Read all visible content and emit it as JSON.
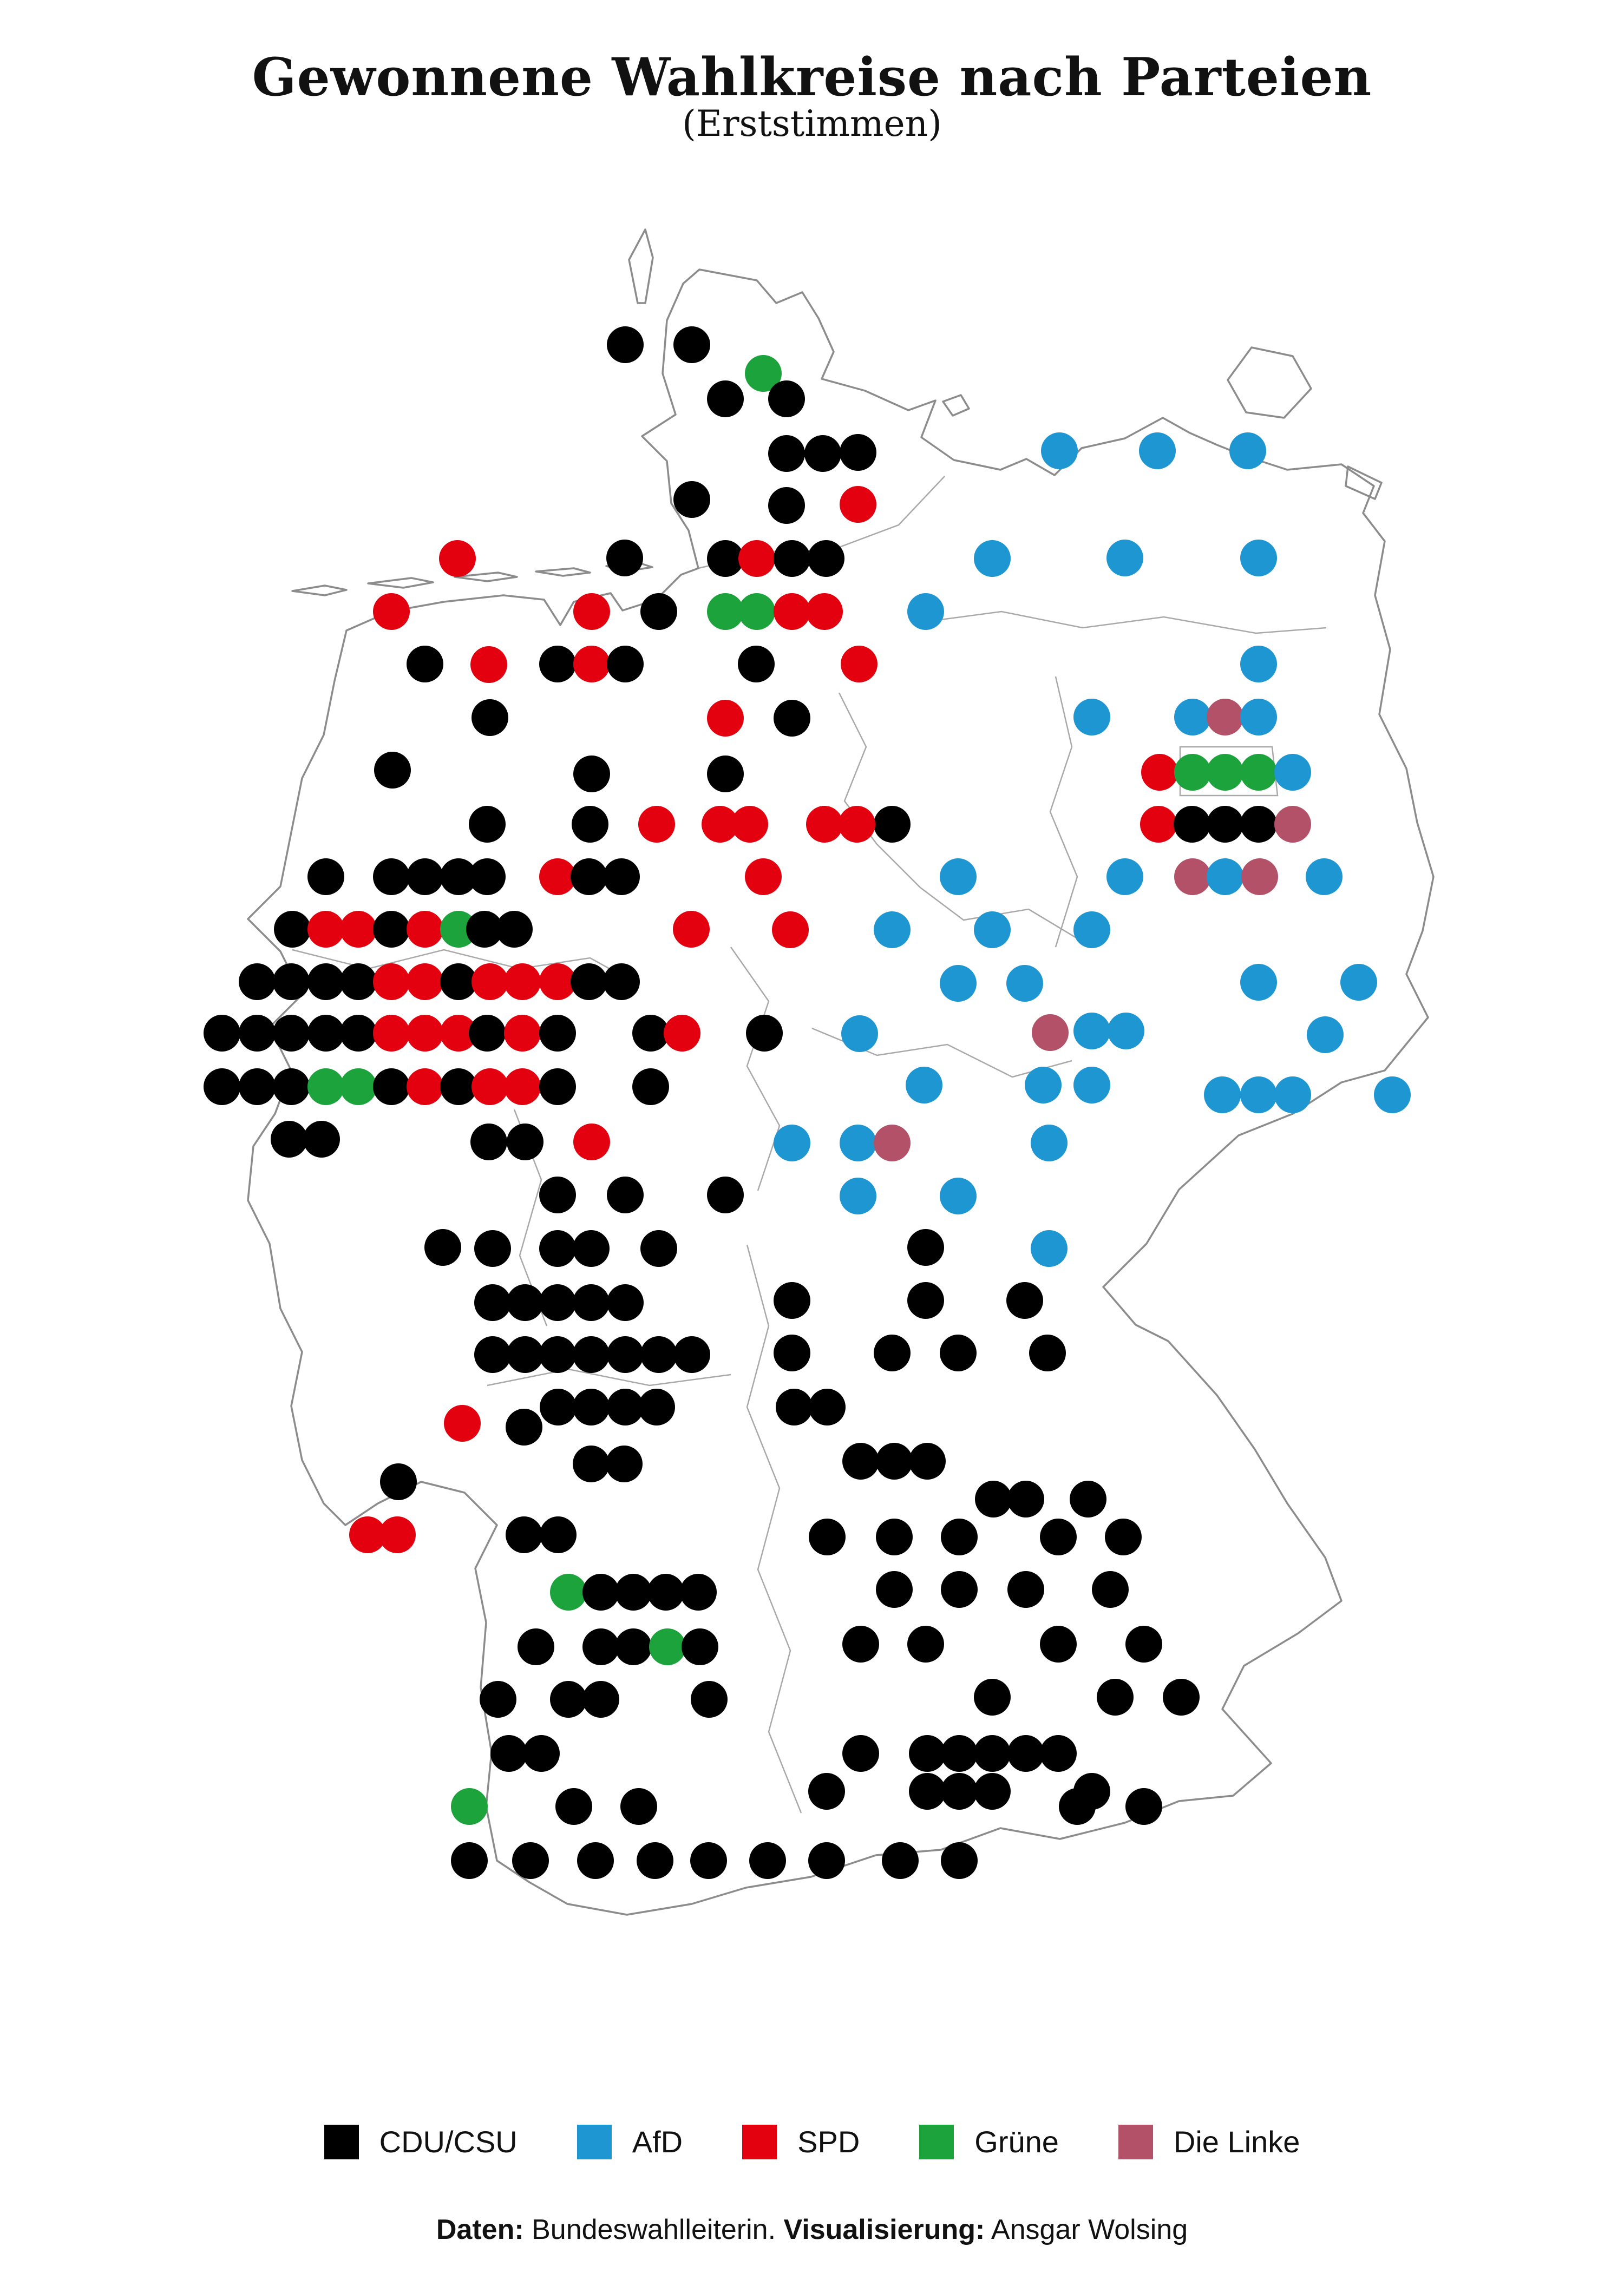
{
  "header": {
    "title": "Gewonnene Wahlkreise nach Parteien",
    "subtitle": "(Erststimmen)"
  },
  "footer": {
    "daten_label": "Daten:",
    "daten_value": " Bundeswahlleiterin. ",
    "vis_label": "Visualisierung:",
    "vis_value": " Ansgar Wolsing"
  },
  "legend": [
    {
      "party": "c",
      "label": "CDU/CSU"
    },
    {
      "party": "a",
      "label": "AfD"
    },
    {
      "party": "s",
      "label": "SPD"
    },
    {
      "party": "g",
      "label": "Grüne"
    },
    {
      "party": "l",
      "label": "Die Linke"
    }
  ],
  "chart_data": {
    "type": "scatter",
    "subtype": "dot-map-germany",
    "title": "Gewonnene Wahlkreise nach Parteien",
    "subtitle": "(Erststimmen)",
    "legend_position": "bottom",
    "marker_radius": 34,
    "parties": {
      "c": {
        "name": "CDU/CSU",
        "color": "#000000"
      },
      "a": {
        "name": "AfD",
        "color": "#1E96D2"
      },
      "s": {
        "name": "SPD",
        "color": "#E3000F"
      },
      "g": {
        "name": "Grüne",
        "color": "#1CA33C"
      },
      "l": {
        "name": "Die Linke",
        "color": "#B35169"
      }
    },
    "points": [
      [
        1155,
        637,
        "c"
      ],
      [
        1278,
        637,
        "c"
      ],
      [
        1410,
        690,
        "g"
      ],
      [
        1340,
        737,
        "c"
      ],
      [
        1453,
        737,
        "c"
      ],
      [
        1453,
        838,
        "c"
      ],
      [
        1520,
        838,
        "c"
      ],
      [
        1585,
        836,
        "c"
      ],
      [
        1278,
        923,
        "c"
      ],
      [
        1453,
        934,
        "c"
      ],
      [
        1585,
        932,
        "s"
      ],
      [
        1154,
        1031,
        "c"
      ],
      [
        1340,
        1032,
        "c"
      ],
      [
        1398,
        1032,
        "s"
      ],
      [
        1463,
        1032,
        "c"
      ],
      [
        1526,
        1032,
        "c"
      ],
      [
        1093,
        1130,
        "s"
      ],
      [
        1217,
        1130,
        "c"
      ],
      [
        1340,
        1130,
        "g"
      ],
      [
        1398,
        1130,
        "g"
      ],
      [
        1463,
        1130,
        "s"
      ],
      [
        1523,
        1130,
        "s"
      ],
      [
        1957,
        833,
        "a"
      ],
      [
        2138,
        833,
        "a"
      ],
      [
        2305,
        833,
        "a"
      ],
      [
        1833,
        1032,
        "a"
      ],
      [
        2078,
        1031,
        "a"
      ],
      [
        2325,
        1031,
        "a"
      ],
      [
        1710,
        1130,
        "a"
      ],
      [
        1587,
        1227,
        "s"
      ],
      [
        2325,
        1227,
        "a"
      ],
      [
        845,
        1032,
        "s"
      ],
      [
        723,
        1130,
        "s"
      ],
      [
        785,
        1227,
        "c"
      ],
      [
        903,
        1228,
        "s"
      ],
      [
        1030,
        1227,
        "c"
      ],
      [
        1093,
        1227,
        "s"
      ],
      [
        1155,
        1227,
        "c"
      ],
      [
        1397,
        1227,
        "c"
      ],
      [
        905,
        1326,
        "c"
      ],
      [
        1340,
        1327,
        "s"
      ],
      [
        1463,
        1327,
        "c"
      ],
      [
        725,
        1423,
        "c"
      ],
      [
        1093,
        1430,
        "c"
      ],
      [
        1340,
        1430,
        "c"
      ],
      [
        602,
        1620,
        "c"
      ],
      [
        1460,
        1718,
        "s"
      ],
      [
        1648,
        1523,
        "c"
      ],
      [
        2140,
        1523,
        "s"
      ],
      [
        2202,
        1523,
        "c"
      ],
      [
        2263,
        1523,
        "c"
      ],
      [
        2325,
        1523,
        "c"
      ],
      [
        2388,
        1523,
        "l"
      ],
      [
        2078,
        1620,
        "a"
      ],
      [
        2203,
        1620,
        "l"
      ],
      [
        2263,
        1620,
        "a"
      ],
      [
        2327,
        1620,
        "l"
      ],
      [
        2446,
        1620,
        "a"
      ],
      [
        1770,
        1620,
        "a"
      ],
      [
        1648,
        1718,
        "a"
      ],
      [
        1833,
        1718,
        "a"
      ],
      [
        2017,
        1718,
        "a"
      ],
      [
        1770,
        1817,
        "a"
      ],
      [
        1893,
        1817,
        "a"
      ],
      [
        2325,
        1815,
        "a"
      ],
      [
        2510,
        1815,
        "a"
      ],
      [
        1588,
        1910,
        "a"
      ],
      [
        1940,
        1908,
        "l"
      ],
      [
        2448,
        1912,
        "a"
      ],
      [
        2017,
        1905,
        "a"
      ],
      [
        2080,
        1905,
        "a"
      ],
      [
        1707,
        2005,
        "a"
      ],
      [
        1927,
        2005,
        "a"
      ],
      [
        2017,
        2005,
        "a"
      ],
      [
        2258,
        2023,
        "a"
      ],
      [
        2325,
        2023,
        "a"
      ],
      [
        2388,
        2023,
        "a"
      ],
      [
        2572,
        2023,
        "a"
      ],
      [
        1463,
        2112,
        "a"
      ],
      [
        1585,
        2112,
        "a"
      ],
      [
        1648,
        2112,
        "l"
      ],
      [
        1938,
        2112,
        "a"
      ],
      [
        1585,
        2210,
        "a"
      ],
      [
        1770,
        2210,
        "a"
      ],
      [
        1938,
        2307,
        "a"
      ],
      [
        2017,
        1325,
        "a"
      ],
      [
        2203,
        1325,
        "a"
      ],
      [
        2263,
        1325,
        "l"
      ],
      [
        2325,
        1325,
        "a"
      ],
      [
        2142,
        1427,
        "s"
      ],
      [
        2203,
        1427,
        "g"
      ],
      [
        2263,
        1427,
        "g"
      ],
      [
        2325,
        1427,
        "g"
      ],
      [
        2388,
        1427,
        "a"
      ],
      [
        900,
        1523,
        "c"
      ],
      [
        1090,
        1523,
        "c"
      ],
      [
        1213,
        1523,
        "s"
      ],
      [
        1330,
        1523,
        "s"
      ],
      [
        1385,
        1523,
        "s"
      ],
      [
        1523,
        1523,
        "s"
      ],
      [
        1583,
        1523,
        "s"
      ],
      [
        723,
        1620,
        "c"
      ],
      [
        785,
        1620,
        "c"
      ],
      [
        847,
        1620,
        "c"
      ],
      [
        900,
        1620,
        "c"
      ],
      [
        1030,
        1620,
        "s"
      ],
      [
        1088,
        1620,
        "c"
      ],
      [
        1148,
        1620,
        "c"
      ],
      [
        540,
        1717,
        "c"
      ],
      [
        602,
        1717,
        "s"
      ],
      [
        662,
        1717,
        "s"
      ],
      [
        723,
        1717,
        "c"
      ],
      [
        785,
        1717,
        "s"
      ],
      [
        847,
        1717,
        "g"
      ],
      [
        895,
        1717,
        "c"
      ],
      [
        950,
        1717,
        "c"
      ],
      [
        1277,
        1717,
        "s"
      ],
      [
        475,
        1814,
        "c"
      ],
      [
        538,
        1814,
        "c"
      ],
      [
        602,
        1814,
        "c"
      ],
      [
        662,
        1814,
        "c"
      ],
      [
        723,
        1814,
        "s"
      ],
      [
        785,
        1814,
        "s"
      ],
      [
        847,
        1814,
        "c"
      ],
      [
        905,
        1814,
        "s"
      ],
      [
        965,
        1814,
        "s"
      ],
      [
        1030,
        1814,
        "s"
      ],
      [
        1088,
        1814,
        "c"
      ],
      [
        1148,
        1814,
        "c"
      ],
      [
        410,
        1909,
        "c"
      ],
      [
        475,
        1909,
        "c"
      ],
      [
        538,
        1909,
        "c"
      ],
      [
        602,
        1909,
        "c"
      ],
      [
        662,
        1909,
        "c"
      ],
      [
        723,
        1909,
        "s"
      ],
      [
        785,
        1909,
        "s"
      ],
      [
        847,
        1909,
        "s"
      ],
      [
        900,
        1909,
        "c"
      ],
      [
        965,
        1909,
        "s"
      ],
      [
        1030,
        1909,
        "c"
      ],
      [
        1202,
        1909,
        "c"
      ],
      [
        1260,
        1909,
        "s"
      ],
      [
        1412,
        1909,
        "c"
      ],
      [
        410,
        2008,
        "c"
      ],
      [
        475,
        2008,
        "c"
      ],
      [
        538,
        2008,
        "c"
      ],
      [
        602,
        2008,
        "g"
      ],
      [
        662,
        2008,
        "g"
      ],
      [
        723,
        2008,
        "c"
      ],
      [
        785,
        2008,
        "s"
      ],
      [
        847,
        2008,
        "c"
      ],
      [
        905,
        2008,
        "s"
      ],
      [
        965,
        2008,
        "s"
      ],
      [
        1030,
        2008,
        "c"
      ],
      [
        1202,
        2008,
        "c"
      ],
      [
        1410,
        1620,
        "s"
      ],
      [
        534,
        2105,
        "c"
      ],
      [
        594,
        2105,
        "c"
      ],
      [
        903,
        2110,
        "c"
      ],
      [
        970,
        2110,
        "c"
      ],
      [
        1093,
        2110,
        "s"
      ],
      [
        1030,
        2208,
        "c"
      ],
      [
        1155,
        2208,
        "c"
      ],
      [
        1340,
        2208,
        "c"
      ],
      [
        818,
        2305,
        "c"
      ],
      [
        910,
        2307,
        "c"
      ],
      [
        1030,
        2307,
        "c"
      ],
      [
        1092,
        2307,
        "c"
      ],
      [
        1217,
        2307,
        "c"
      ],
      [
        910,
        2407,
        "c"
      ],
      [
        970,
        2407,
        "c"
      ],
      [
        1030,
        2407,
        "c"
      ],
      [
        1092,
        2407,
        "c"
      ],
      [
        1155,
        2407,
        "c"
      ],
      [
        910,
        2503,
        "c"
      ],
      [
        970,
        2503,
        "c"
      ],
      [
        1030,
        2503,
        "c"
      ],
      [
        1092,
        2503,
        "c"
      ],
      [
        1155,
        2503,
        "c"
      ],
      [
        1217,
        2503,
        "c"
      ],
      [
        1278,
        2503,
        "c"
      ],
      [
        854,
        2630,
        "s"
      ],
      [
        968,
        2637,
        "c"
      ],
      [
        736,
        2738,
        "c"
      ],
      [
        679,
        2836,
        "s"
      ],
      [
        734,
        2836,
        "s"
      ],
      [
        1710,
        2305,
        "c"
      ],
      [
        1463,
        2403,
        "c"
      ],
      [
        1710,
        2403,
        "c"
      ],
      [
        1893,
        2403,
        "c"
      ],
      [
        1463,
        2500,
        "c"
      ],
      [
        1648,
        2500,
        "c"
      ],
      [
        1770,
        2500,
        "c"
      ],
      [
        1935,
        2500,
        "c"
      ],
      [
        1467,
        2600,
        "c"
      ],
      [
        1528,
        2600,
        "c"
      ],
      [
        1590,
        2700,
        "c"
      ],
      [
        1652,
        2700,
        "c"
      ],
      [
        1713,
        2700,
        "c"
      ],
      [
        1835,
        2770,
        "c"
      ],
      [
        2010,
        2770,
        "c"
      ],
      [
        1895,
        2770,
        "c"
      ],
      [
        1528,
        2840,
        "c"
      ],
      [
        1652,
        2840,
        "c"
      ],
      [
        1772,
        2840,
        "c"
      ],
      [
        1955,
        2840,
        "c"
      ],
      [
        2075,
        2840,
        "c"
      ],
      [
        1652,
        2937,
        "c"
      ],
      [
        1772,
        2937,
        "c"
      ],
      [
        1895,
        2937,
        "c"
      ],
      [
        2051,
        2937,
        "c"
      ],
      [
        1590,
        3038,
        "c"
      ],
      [
        1710,
        3038,
        "c"
      ],
      [
        1955,
        3038,
        "c"
      ],
      [
        2113,
        3038,
        "c"
      ],
      [
        1833,
        3136,
        "c"
      ],
      [
        2060,
        3136,
        "c"
      ],
      [
        2182,
        3136,
        "c"
      ],
      [
        1590,
        3240,
        "c"
      ],
      [
        1713,
        3240,
        "c"
      ],
      [
        1772,
        3240,
        "c"
      ],
      [
        1833,
        3240,
        "c"
      ],
      [
        1895,
        3240,
        "c"
      ],
      [
        1955,
        3240,
        "c"
      ],
      [
        1527,
        3310,
        "c"
      ],
      [
        1713,
        3310,
        "c"
      ],
      [
        1772,
        3310,
        "c"
      ],
      [
        1833,
        3310,
        "c"
      ],
      [
        2017,
        3310,
        "c"
      ],
      [
        1990,
        3338,
        "c"
      ],
      [
        2113,
        3338,
        "c"
      ],
      [
        1309,
        3438,
        "c"
      ],
      [
        1418,
        3438,
        "c"
      ],
      [
        1527,
        3438,
        "c"
      ],
      [
        1663,
        3438,
        "c"
      ],
      [
        1772,
        3438,
        "c"
      ],
      [
        1031,
        2600,
        "c"
      ],
      [
        1092,
        2600,
        "c"
      ],
      [
        1155,
        2600,
        "c"
      ],
      [
        1213,
        2600,
        "c"
      ],
      [
        1092,
        2705,
        "c"
      ],
      [
        1153,
        2705,
        "c"
      ],
      [
        968,
        2836,
        "c"
      ],
      [
        1031,
        2836,
        "c"
      ],
      [
        1050,
        2942,
        "g"
      ],
      [
        1110,
        2942,
        "c"
      ],
      [
        1170,
        2942,
        "c"
      ],
      [
        1230,
        2942,
        "c"
      ],
      [
        1290,
        2942,
        "c"
      ],
      [
        990,
        3043,
        "c"
      ],
      [
        1110,
        3043,
        "c"
      ],
      [
        1170,
        3043,
        "c"
      ],
      [
        1233,
        3043,
        "g"
      ],
      [
        1293,
        3043,
        "c"
      ],
      [
        920,
        3140,
        "c"
      ],
      [
        1050,
        3140,
        "c"
      ],
      [
        1110,
        3140,
        "c"
      ],
      [
        1310,
        3140,
        "c"
      ],
      [
        940,
        3240,
        "c"
      ],
      [
        1000,
        3240,
        "c"
      ],
      [
        867,
        3338,
        "g"
      ],
      [
        1060,
        3338,
        "c"
      ],
      [
        1180,
        3338,
        "c"
      ],
      [
        867,
        3438,
        "c"
      ],
      [
        980,
        3438,
        "c"
      ],
      [
        1100,
        3438,
        "c"
      ],
      [
        1210,
        3438,
        "c"
      ]
    ]
  }
}
